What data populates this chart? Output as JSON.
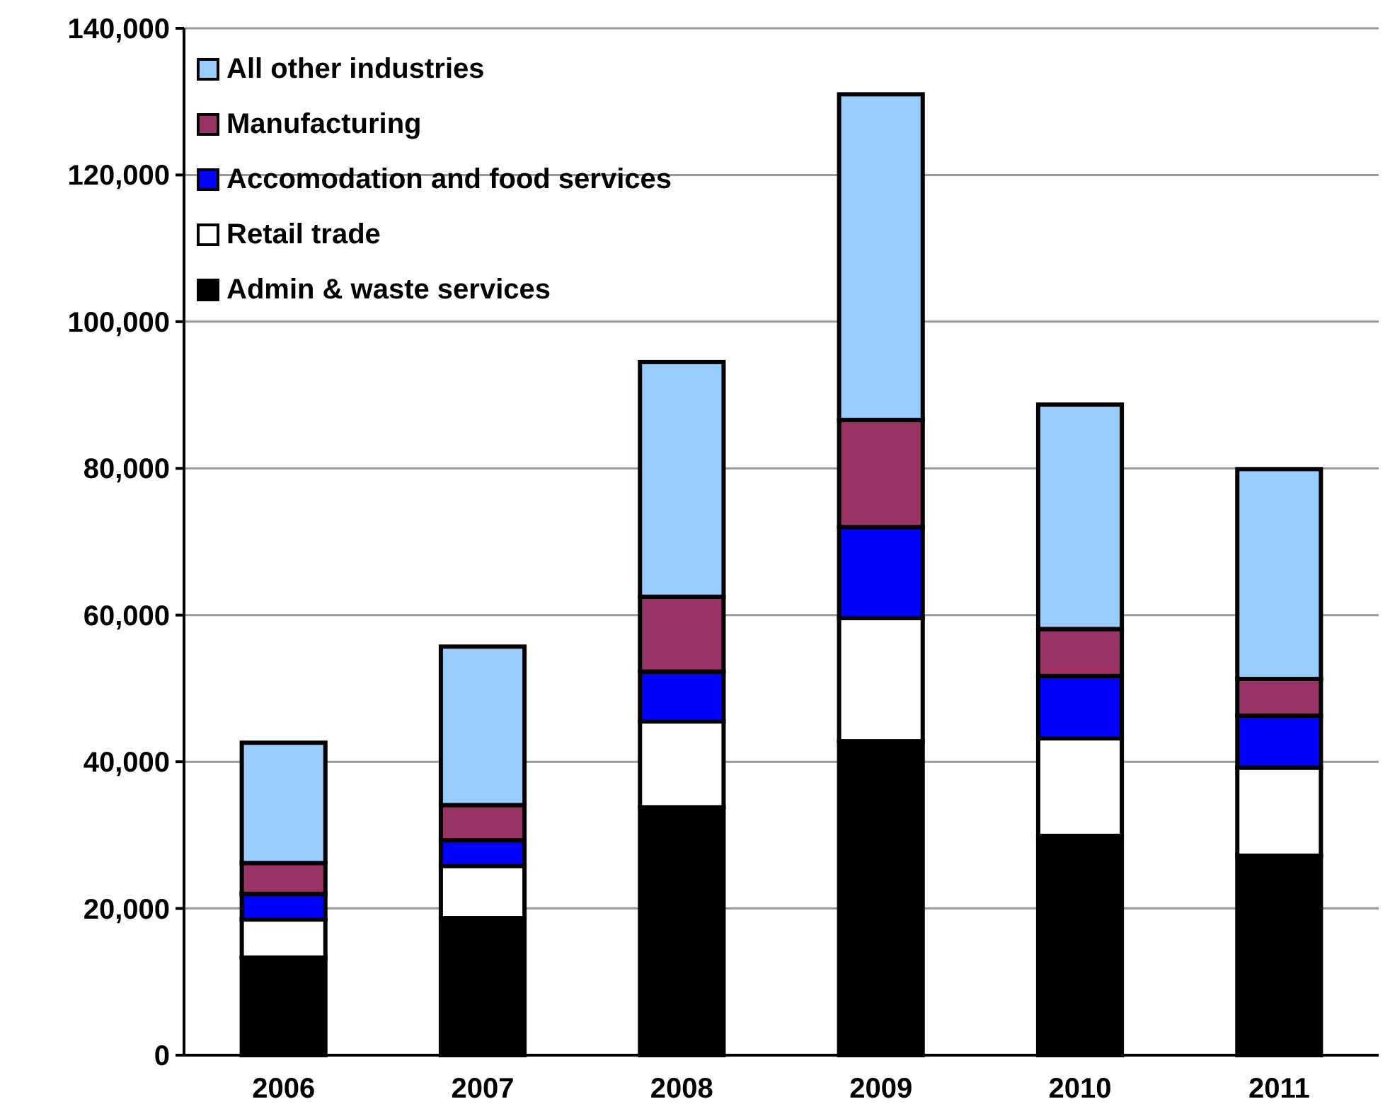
{
  "chart_data": {
    "type": "bar",
    "stacked": true,
    "categories": [
      "2006",
      "2007",
      "2008",
      "2009",
      "2010",
      "2011"
    ],
    "series": [
      {
        "name": "Admin & waste services",
        "color": "#000000",
        "values": [
          13300,
          18700,
          33800,
          42800,
          29900,
          27200
        ]
      },
      {
        "name": "Retail trade",
        "color": "#ffffff",
        "values": [
          5200,
          7100,
          11700,
          16800,
          13300,
          12000
        ]
      },
      {
        "name": "Accomodation and food services",
        "color": "#0000ff",
        "values": [
          3500,
          3500,
          6800,
          12400,
          8500,
          7100
        ]
      },
      {
        "name": "Manufacturing",
        "color": "#993366",
        "values": [
          4200,
          4800,
          10200,
          14600,
          6400,
          5000
        ]
      },
      {
        "name": "All other industries",
        "color": "#99ccff",
        "values": [
          16400,
          21600,
          32000,
          44400,
          30600,
          28600
        ]
      }
    ],
    "ylim": [
      0,
      140000
    ],
    "yticks": [
      {
        "value": 0,
        "label": "0"
      },
      {
        "value": 20000,
        "label": "20,000"
      },
      {
        "value": 40000,
        "label": "40,000"
      },
      {
        "value": 60000,
        "label": "60,000"
      },
      {
        "value": 80000,
        "label": "80,000"
      },
      {
        "value": 100000,
        "label": "100,000"
      },
      {
        "value": 120000,
        "label": "120,000"
      },
      {
        "value": 140000,
        "label": "140,000"
      }
    ],
    "grid": "y",
    "legend": "top left"
  }
}
